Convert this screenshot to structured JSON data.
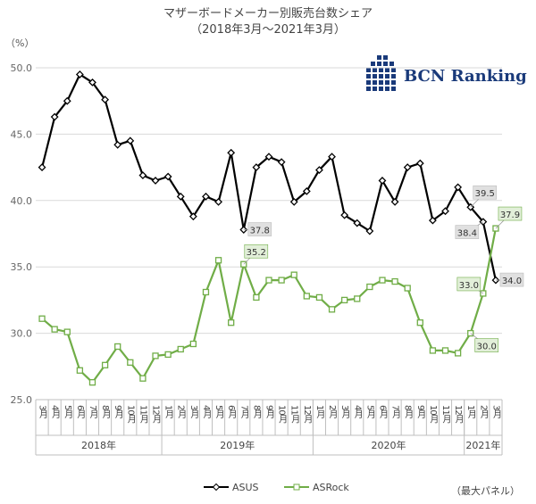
{
  "title_line1": "マザーボードメーカー別販売台数シェア",
  "title_line2": "（2018年3月〜2021年3月）",
  "unit": "（%）",
  "logo_text": "BCN Ranking",
  "note": "（最大パネル）",
  "colors": {
    "asus": "#000000",
    "asrock": "#70ad47",
    "grid": "#d9d9d9",
    "axis": "#bfbfbf",
    "label_bg": "#e0e0e0"
  },
  "chart_data": {
    "type": "line",
    "y_ticks": [
      "25.0",
      "30.0",
      "35.0",
      "40.0",
      "45.0",
      "50.0"
    ],
    "ylim": [
      25,
      50
    ],
    "month_labels": [
      "3月",
      "4月",
      "5月",
      "6月",
      "7月",
      "8月",
      "9月",
      "10月",
      "11月",
      "12月",
      "1月",
      "2月",
      "3月",
      "4月",
      "5月",
      "6月",
      "7月",
      "8月",
      "9月",
      "10月",
      "11月",
      "12月",
      "1月",
      "2月",
      "3月",
      "4月",
      "5月",
      "6月",
      "7月",
      "8月",
      "9月",
      "10月",
      "11月",
      "12月",
      "1月",
      "2月",
      "3月"
    ],
    "year_groups": [
      {
        "label": "2018年",
        "start": 0,
        "end": 9
      },
      {
        "label": "2019年",
        "start": 10,
        "end": 21
      },
      {
        "label": "2020年",
        "start": 22,
        "end": 33
      },
      {
        "label": "2021年",
        "start": 34,
        "end": 36
      }
    ],
    "series": [
      {
        "name": "ASUS",
        "key": "asus",
        "marker": "diamond",
        "values": [
          42.5,
          46.3,
          47.5,
          49.5,
          48.9,
          47.6,
          44.2,
          44.5,
          41.9,
          41.5,
          41.8,
          40.3,
          38.8,
          40.3,
          39.9,
          43.6,
          37.8,
          42.5,
          43.3,
          42.9,
          39.9,
          40.7,
          42.3,
          43.3,
          38.9,
          38.3,
          37.7,
          41.5,
          39.9,
          42.5,
          42.8,
          38.5,
          39.2,
          41.0,
          39.5,
          38.4,
          34.0
        ]
      },
      {
        "name": "ASRock",
        "key": "asrock",
        "marker": "square",
        "values": [
          31.1,
          30.3,
          30.1,
          27.2,
          26.3,
          27.6,
          29.0,
          27.8,
          26.6,
          28.3,
          28.4,
          28.8,
          29.2,
          33.1,
          35.5,
          30.8,
          35.2,
          32.7,
          34.0,
          34.0,
          34.4,
          32.8,
          32.7,
          31.8,
          32.5,
          32.6,
          33.5,
          34.0,
          33.9,
          33.4,
          30.8,
          28.7,
          28.7,
          28.5,
          30.0,
          33.0,
          37.9
        ]
      }
    ],
    "data_labels": [
      {
        "series": "asus",
        "index": 16,
        "text": "37.8",
        "pos": "right"
      },
      {
        "series": "asus",
        "index": 34,
        "text": "39.5",
        "pos": "upper-right"
      },
      {
        "series": "asus",
        "index": 35,
        "text": "38.4",
        "pos": "lower-left"
      },
      {
        "series": "asus",
        "index": 36,
        "text": "34.0",
        "pos": "right"
      },
      {
        "series": "asrock",
        "index": 16,
        "text": "35.2",
        "pos": "right-up"
      },
      {
        "series": "asrock",
        "index": 34,
        "text": "30.0",
        "pos": "lower-right"
      },
      {
        "series": "asrock",
        "index": 35,
        "text": "33.0",
        "pos": "left-up"
      },
      {
        "series": "asrock",
        "index": 36,
        "text": "37.9",
        "pos": "upper-right"
      }
    ],
    "legend": [
      {
        "key": "asus",
        "label": "ASUS"
      },
      {
        "key": "asrock",
        "label": "ASRock"
      }
    ],
    "legend_position": "bottom",
    "grid": true
  }
}
